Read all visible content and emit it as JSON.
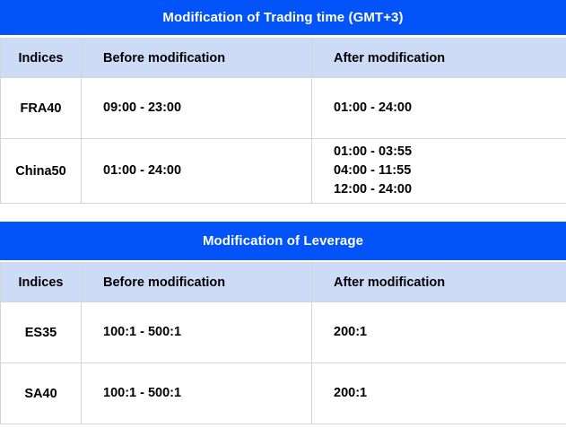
{
  "colors": {
    "title_bg": "#0253f8",
    "header_bg": "#cedbf6",
    "border": "#d5d5d5",
    "title_text": "#ffffff",
    "body_text": "#000000",
    "page_bg": "#ffffff"
  },
  "tables": [
    {
      "title": "Modification of Trading time (GMT+3)",
      "columns": [
        "Indices",
        "Before modification",
        "After modification"
      ],
      "rows": [
        {
          "indices": "FRA40",
          "before": [
            "09:00 - 23:00"
          ],
          "after": [
            "01:00 - 24:00"
          ]
        },
        {
          "indices": "China50",
          "before": [
            "01:00 - 24:00"
          ],
          "after": [
            "01:00 - 03:55",
            "04:00 - 11:55",
            "12:00 - 24:00"
          ]
        }
      ]
    },
    {
      "title": "Modification of Leverage",
      "columns": [
        "Indices",
        "Before modification",
        "After modification"
      ],
      "rows": [
        {
          "indices": "ES35",
          "before": [
            "100:1 - 500:1"
          ],
          "after": [
            "200:1"
          ]
        },
        {
          "indices": "SA40",
          "before": [
            "100:1 - 500:1"
          ],
          "after": [
            "200:1"
          ]
        }
      ]
    }
  ]
}
